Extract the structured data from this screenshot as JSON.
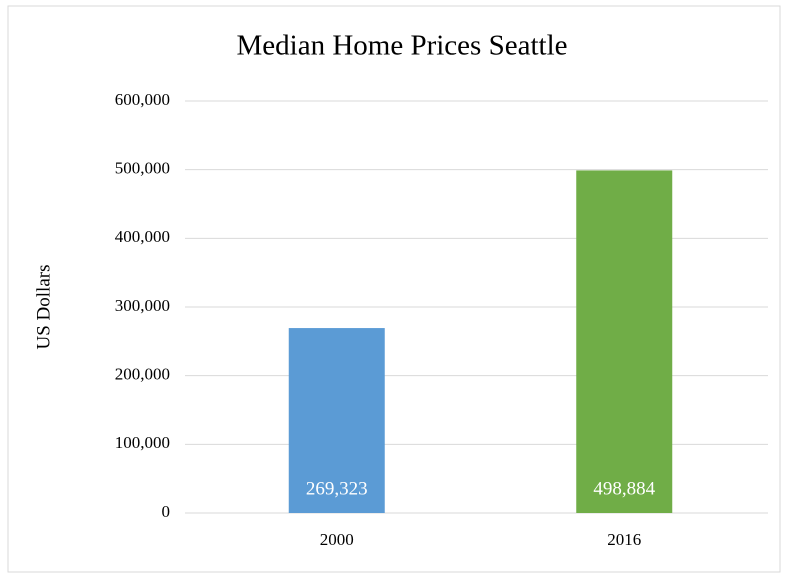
{
  "chart_data": {
    "type": "bar",
    "title": "Median Home Prices Seattle",
    "y_label": "US Dollars",
    "categories": [
      "2000",
      "2016"
    ],
    "values": [
      269323,
      498884
    ],
    "value_labels": [
      "269,323",
      "498,884"
    ],
    "colors": [
      "#5b9bd5",
      "#70ad47"
    ],
    "ylim": [
      0,
      600000
    ],
    "yticks": [
      0,
      {
        "value": 100000,
        "label": "100,000"
      },
      {
        "value": 200000,
        "label": "200,000"
      },
      {
        "value": 300000,
        "label": "300,000"
      },
      {
        "value": 400000,
        "label": "400,000"
      },
      {
        "value": 500000,
        "label": "500,000"
      },
      {
        "value": 600000,
        "label": "600,000"
      }
    ],
    "grid": true
  }
}
